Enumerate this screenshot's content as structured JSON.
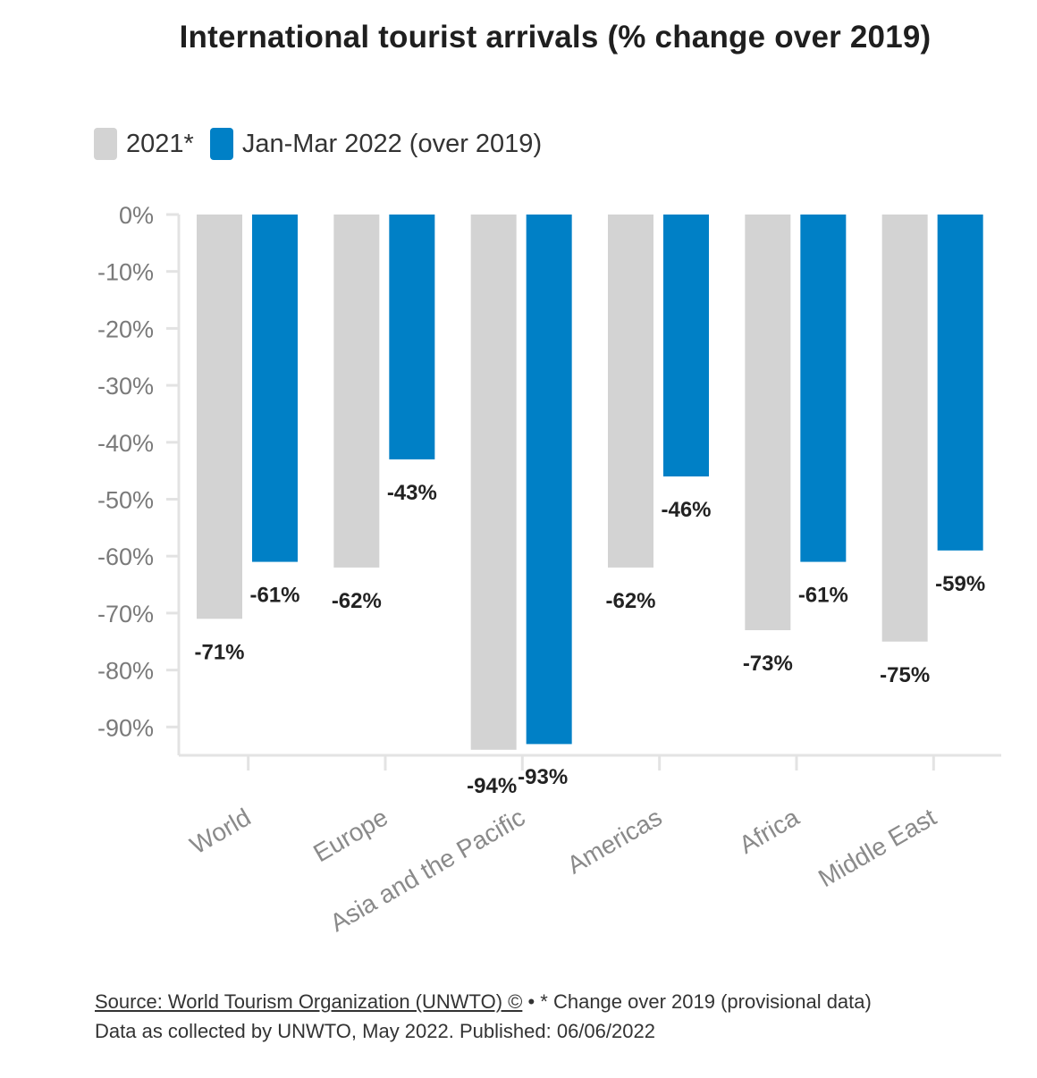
{
  "chart_data": {
    "type": "bar",
    "title": "International tourist arrivals (% change over 2019)",
    "categories": [
      "World",
      "Europe",
      "Asia and the Pacific",
      "Americas",
      "Africa",
      "Middle East"
    ],
    "series": [
      {
        "name": "2021*",
        "color": "#d3d3d3",
        "values": [
          -71,
          -62,
          -94,
          -62,
          -73,
          -75
        ],
        "labels": [
          "-71%",
          "-62%",
          "-94%",
          "-62%",
          "-73%",
          "-75%"
        ]
      },
      {
        "name": "Jan-Mar 2022 (over 2019)",
        "color": "#0080c6",
        "values": [
          -61,
          -43,
          -93,
          -46,
          -61,
          -59
        ],
        "labels": [
          "-61%",
          "-43%",
          "-93%",
          "-46%",
          "-61%",
          "-59%"
        ]
      }
    ],
    "ylim": [
      -95,
      0
    ],
    "yticks": [
      0,
      -10,
      -20,
      -30,
      -40,
      -50,
      -60,
      -70,
      -80,
      -90
    ],
    "ytick_labels": [
      "0%",
      "-10%",
      "-20%",
      "-30%",
      "-40%",
      "-50%",
      "-60%",
      "-70%",
      "-80%",
      "-90%"
    ],
    "xlabel": "",
    "ylabel": "",
    "grid": false,
    "legend": "top-left"
  },
  "footer": {
    "source_link": "Source: World Tourism Organization (UNWTO) ©",
    "separator": " • ",
    "note": "* Change over 2019 (provisional data)",
    "line2": "Data as collected by UNWTO, May 2022. Published: 06/06/2022"
  }
}
